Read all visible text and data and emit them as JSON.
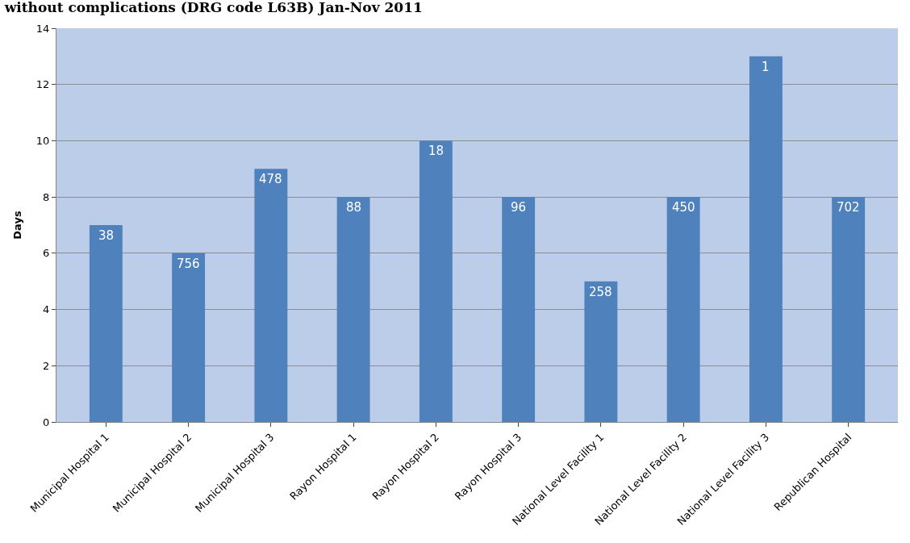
{
  "chart_data": {
    "type": "bar",
    "title": "without complications (DRG code L63B) Jan-Nov 2011",
    "ylabel": "Days",
    "categories": [
      "Municipal Hospital 1",
      "Municipal Hospital 2",
      "Municipal Hospital 3",
      "Rayon Hospital 1",
      "Rayon Hospital 2",
      "Rayon Hospital 3",
      "National Level Facility 1",
      "National Level Facility 2",
      "National Level Facility 3",
      "Republican Hospital"
    ],
    "values": [
      7,
      6,
      9,
      8,
      10,
      8,
      5,
      8,
      13,
      8
    ],
    "annotations": [
      {
        "text": "38",
        "x": "Municipal Hospital 1",
        "y": 7
      },
      {
        "text": "756",
        "x": "Municipal Hospital 2",
        "y": 6
      },
      {
        "text": "478",
        "x": "Municipal Hospital 3",
        "y": 9
      },
      {
        "text": "88",
        "x": "Rayon Hospital 1",
        "y": 8
      },
      {
        "text": "18",
        "x": "Rayon Hospital 2",
        "y": 10
      },
      {
        "text": "96",
        "x": "Rayon Hospital 3",
        "y": 8
      },
      {
        "text": "258",
        "x": "National Level Facility 1",
        "y": 5
      },
      {
        "text": "450",
        "x": "National Level Facility 2",
        "y": 8
      },
      {
        "text": "1",
        "x": "National Level Facility 3",
        "y": 13
      },
      {
        "text": "702",
        "x": "Republican Hospital",
        "y": 8
      }
    ],
    "color": "#4f81bd",
    "ylim": [
      0,
      14
    ],
    "yticks": [
      0,
      2,
      4,
      6,
      8,
      10,
      12,
      14
    ],
    "grid": "y"
  }
}
